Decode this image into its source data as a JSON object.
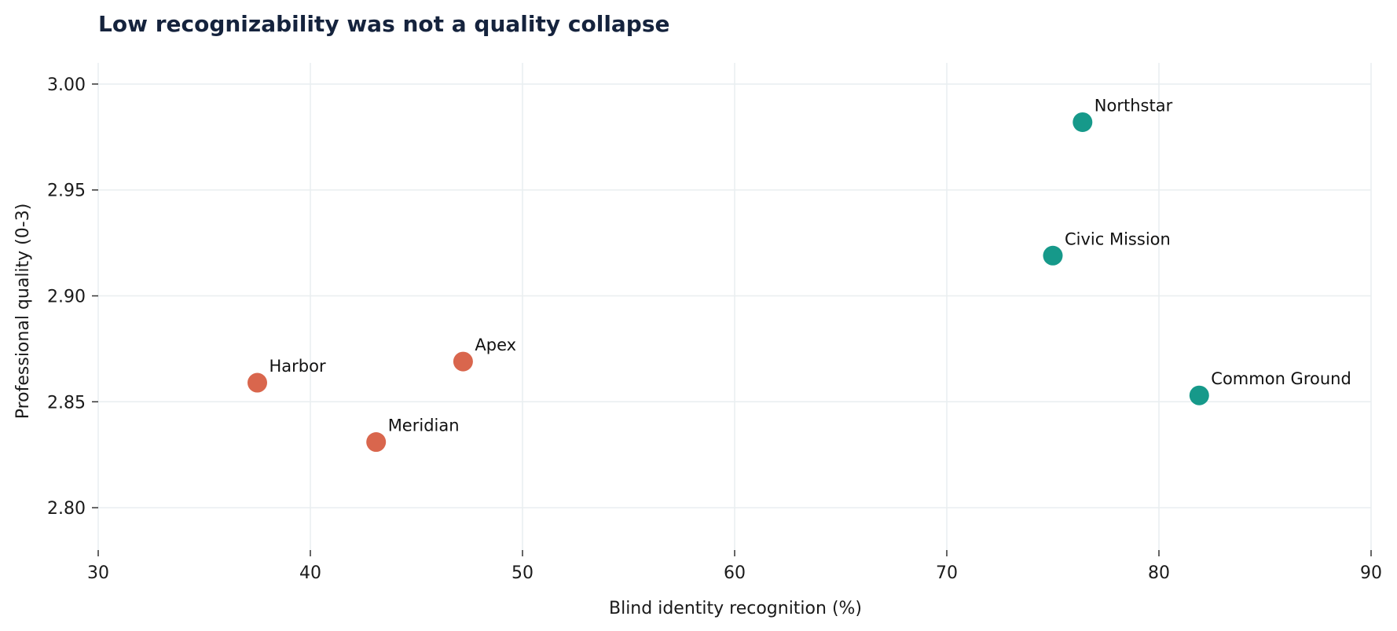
{
  "chart_data": {
    "type": "scatter",
    "title": "Low recognizability was not a quality collapse",
    "xlabel": "Blind identity recognition (%)",
    "ylabel": "Professional quality (0-3)",
    "xlim": [
      30,
      90
    ],
    "ylim": [
      2.78,
      3.01
    ],
    "xticks": [
      "30",
      "40",
      "50",
      "60",
      "70",
      "80",
      "90"
    ],
    "xtick_values": [
      30,
      40,
      50,
      60,
      70,
      80,
      90
    ],
    "yticks": [
      "2.80",
      "2.85",
      "2.90",
      "2.95",
      "3.00"
    ],
    "ytick_values": [
      2.8,
      2.85,
      2.9,
      2.95,
      3.0
    ],
    "grid": true,
    "colors": {
      "low": "#d9664d",
      "high": "#16998a",
      "grid": "#e9eef0",
      "title": "#15233d"
    },
    "points": [
      {
        "label": "Harbor",
        "x": 37.5,
        "y": 2.859,
        "group": "low"
      },
      {
        "label": "Meridian",
        "x": 43.1,
        "y": 2.831,
        "group": "low"
      },
      {
        "label": "Apex",
        "x": 47.2,
        "y": 2.869,
        "group": "low"
      },
      {
        "label": "Civic Mission",
        "x": 75.0,
        "y": 2.919,
        "group": "high"
      },
      {
        "label": "Northstar",
        "x": 76.4,
        "y": 2.982,
        "group": "high"
      },
      {
        "label": "Common Ground",
        "x": 81.9,
        "y": 2.853,
        "group": "high"
      }
    ]
  }
}
